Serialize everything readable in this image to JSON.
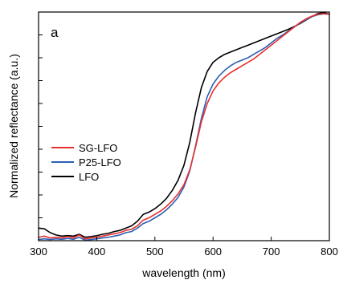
{
  "chart_data": {
    "type": "line",
    "panel_label": "a",
    "title": "",
    "xlabel": "wavelength (nm)",
    "ylabel": "Normalized reflectance (a.u.)",
    "xlim": [
      300,
      800
    ],
    "ylim": [
      0,
      1
    ],
    "x_ticks": [
      300,
      400,
      500,
      600,
      700,
      800
    ],
    "y_tick_labels_shown": false,
    "grid": false,
    "legend_position": "center-left",
    "series": [
      {
        "name": "SG-LFO",
        "color": "#e8302f",
        "points": [
          [
            300,
            0.015
          ],
          [
            310,
            0.02
          ],
          [
            320,
            0.012
          ],
          [
            330,
            0.015
          ],
          [
            340,
            0.012
          ],
          [
            350,
            0.018
          ],
          [
            360,
            0.012
          ],
          [
            370,
            0.025
          ],
          [
            380,
            0.008
          ],
          [
            390,
            0.012
          ],
          [
            400,
            0.015
          ],
          [
            410,
            0.02
          ],
          [
            420,
            0.025
          ],
          [
            430,
            0.03
          ],
          [
            440,
            0.035
          ],
          [
            450,
            0.045
          ],
          [
            460,
            0.05
          ],
          [
            470,
            0.065
          ],
          [
            480,
            0.09
          ],
          [
            490,
            0.1
          ],
          [
            500,
            0.115
          ],
          [
            510,
            0.13
          ],
          [
            520,
            0.15
          ],
          [
            530,
            0.175
          ],
          [
            540,
            0.205
          ],
          [
            550,
            0.245
          ],
          [
            560,
            0.31
          ],
          [
            570,
            0.41
          ],
          [
            580,
            0.52
          ],
          [
            590,
            0.6
          ],
          [
            600,
            0.655
          ],
          [
            610,
            0.69
          ],
          [
            620,
            0.715
          ],
          [
            630,
            0.735
          ],
          [
            640,
            0.75
          ],
          [
            650,
            0.765
          ],
          [
            660,
            0.78
          ],
          [
            670,
            0.795
          ],
          [
            680,
            0.815
          ],
          [
            690,
            0.835
          ],
          [
            700,
            0.855
          ],
          [
            710,
            0.875
          ],
          [
            720,
            0.895
          ],
          [
            730,
            0.915
          ],
          [
            740,
            0.935
          ],
          [
            750,
            0.955
          ],
          [
            760,
            0.97
          ],
          [
            770,
            0.982
          ],
          [
            780,
            0.99
          ],
          [
            790,
            0.993
          ],
          [
            800,
            0.99
          ]
        ]
      },
      {
        "name": "P25-LFO",
        "color": "#2b5fb4",
        "points": [
          [
            300,
            0.005
          ],
          [
            310,
            0.008
          ],
          [
            320,
            0.005
          ],
          [
            330,
            0.008
          ],
          [
            340,
            0.006
          ],
          [
            350,
            0.01
          ],
          [
            360,
            0.006
          ],
          [
            370,
            0.015
          ],
          [
            380,
            0.002
          ],
          [
            390,
            0.005
          ],
          [
            400,
            0.008
          ],
          [
            410,
            0.012
          ],
          [
            420,
            0.015
          ],
          [
            430,
            0.02
          ],
          [
            440,
            0.025
          ],
          [
            450,
            0.035
          ],
          [
            460,
            0.04
          ],
          [
            470,
            0.055
          ],
          [
            480,
            0.075
          ],
          [
            490,
            0.085
          ],
          [
            500,
            0.1
          ],
          [
            510,
            0.115
          ],
          [
            520,
            0.135
          ],
          [
            530,
            0.16
          ],
          [
            540,
            0.19
          ],
          [
            550,
            0.235
          ],
          [
            560,
            0.305
          ],
          [
            570,
            0.415
          ],
          [
            580,
            0.535
          ],
          [
            590,
            0.63
          ],
          [
            600,
            0.685
          ],
          [
            610,
            0.72
          ],
          [
            620,
            0.745
          ],
          [
            630,
            0.765
          ],
          [
            640,
            0.78
          ],
          [
            650,
            0.79
          ],
          [
            660,
            0.8
          ],
          [
            670,
            0.815
          ],
          [
            680,
            0.83
          ],
          [
            690,
            0.845
          ],
          [
            700,
            0.865
          ],
          [
            710,
            0.885
          ],
          [
            720,
            0.9
          ],
          [
            730,
            0.918
          ],
          [
            740,
            0.935
          ],
          [
            750,
            0.952
          ],
          [
            760,
            0.967
          ],
          [
            770,
            0.98
          ],
          [
            780,
            0.988
          ],
          [
            790,
            0.992
          ],
          [
            800,
            0.99
          ]
        ]
      },
      {
        "name": "LFO",
        "color": "#000000",
        "points": [
          [
            300,
            0.055
          ],
          [
            310,
            0.052
          ],
          [
            320,
            0.035
          ],
          [
            330,
            0.025
          ],
          [
            340,
            0.02
          ],
          [
            350,
            0.022
          ],
          [
            360,
            0.02
          ],
          [
            370,
            0.028
          ],
          [
            380,
            0.015
          ],
          [
            390,
            0.018
          ],
          [
            400,
            0.022
          ],
          [
            410,
            0.028
          ],
          [
            420,
            0.032
          ],
          [
            430,
            0.04
          ],
          [
            440,
            0.045
          ],
          [
            450,
            0.055
          ],
          [
            460,
            0.065
          ],
          [
            470,
            0.085
          ],
          [
            480,
            0.115
          ],
          [
            490,
            0.125
          ],
          [
            500,
            0.14
          ],
          [
            510,
            0.16
          ],
          [
            520,
            0.185
          ],
          [
            530,
            0.22
          ],
          [
            540,
            0.265
          ],
          [
            550,
            0.33
          ],
          [
            560,
            0.43
          ],
          [
            570,
            0.56
          ],
          [
            580,
            0.67
          ],
          [
            590,
            0.74
          ],
          [
            600,
            0.78
          ],
          [
            610,
            0.8
          ],
          [
            620,
            0.815
          ],
          [
            630,
            0.825
          ],
          [
            640,
            0.835
          ],
          [
            650,
            0.845
          ],
          [
            660,
            0.855
          ],
          [
            670,
            0.865
          ],
          [
            680,
            0.875
          ],
          [
            690,
            0.885
          ],
          [
            700,
            0.895
          ],
          [
            710,
            0.905
          ],
          [
            720,
            0.915
          ],
          [
            730,
            0.925
          ],
          [
            740,
            0.937
          ],
          [
            750,
            0.95
          ],
          [
            760,
            0.965
          ],
          [
            770,
            0.98
          ],
          [
            780,
            0.993
          ],
          [
            790,
            0.998
          ],
          [
            800,
            0.99
          ]
        ]
      }
    ]
  }
}
